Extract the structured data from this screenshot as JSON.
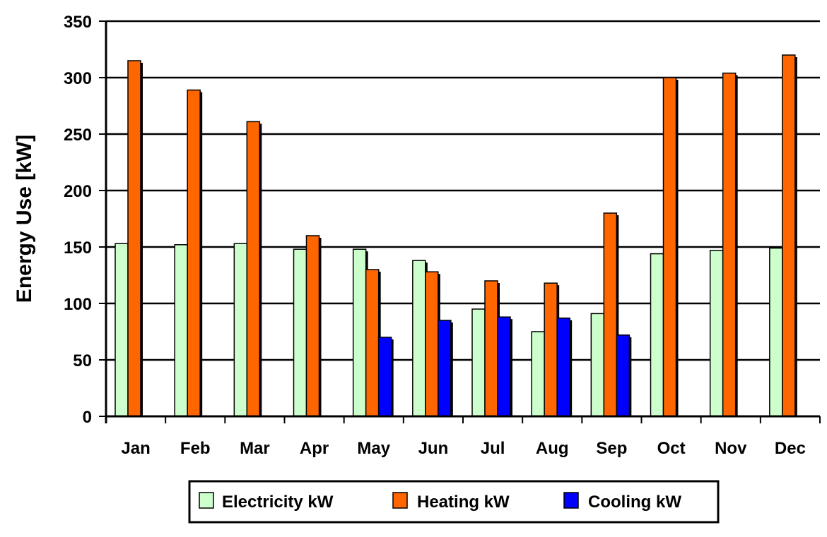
{
  "chart_data": {
    "type": "bar",
    "title": "",
    "xlabel": "",
    "ylabel": "Energy Use [kW]",
    "ylim": [
      0,
      350
    ],
    "yticks": [
      0,
      50,
      100,
      150,
      200,
      250,
      300,
      350
    ],
    "grid": "horizontal",
    "legend_position": "bottom",
    "categories": [
      "Jan",
      "Feb",
      "Mar",
      "Apr",
      "May",
      "Jun",
      "Jul",
      "Aug",
      "Sep",
      "Oct",
      "Nov",
      "Dec"
    ],
    "series": [
      {
        "name": "Electricity kW",
        "color": "#ccffcc",
        "values": [
          153,
          152,
          153,
          148,
          148,
          138,
          95,
          75,
          91,
          144,
          147,
          149
        ]
      },
      {
        "name": "Heating kW",
        "color": "#ff6600",
        "values": [
          315,
          289,
          261,
          160,
          130,
          128,
          120,
          118,
          180,
          300,
          304,
          320
        ]
      },
      {
        "name": "Cooling kW",
        "color": "#0000ff",
        "values": [
          0,
          0,
          0,
          0,
          70,
          85,
          88,
          87,
          72,
          0,
          0,
          0
        ]
      }
    ]
  }
}
